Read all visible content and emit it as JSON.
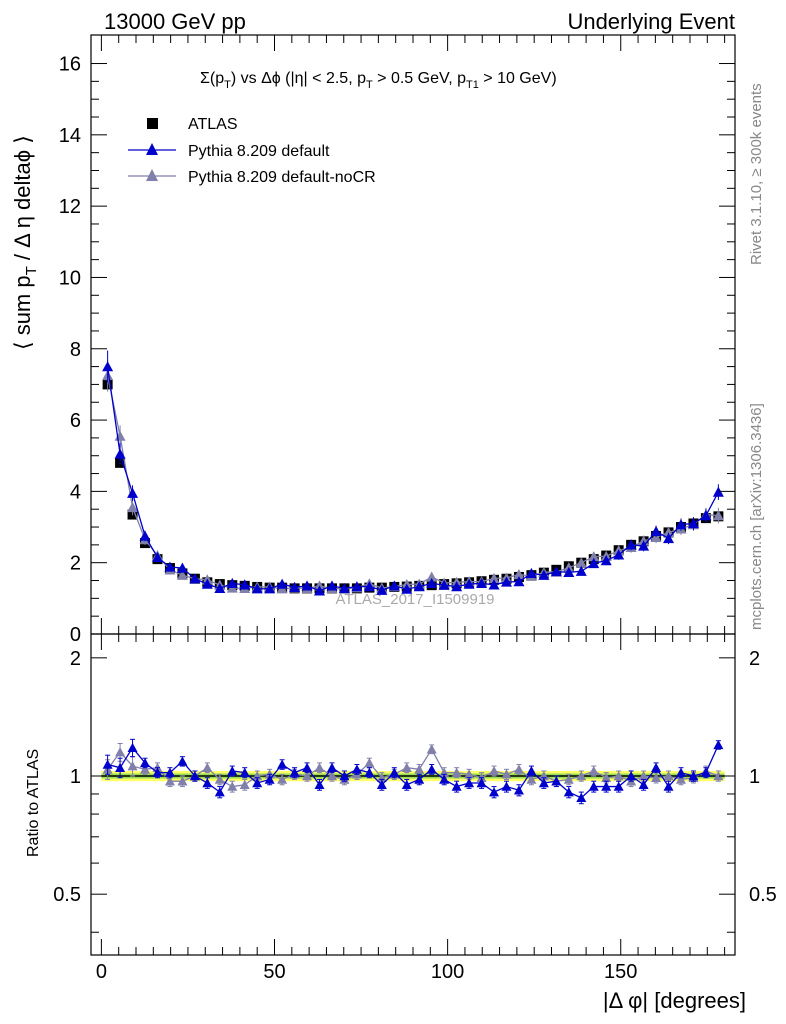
{
  "header": {
    "left": "13000 GeV pp",
    "right": "Underlying Event"
  },
  "side_labels": {
    "rivet": "Rivet 3.1.10, ≥ 300k events",
    "mcplots": "mcplots.cern.ch [arXiv:1306.3436]"
  },
  "watermark": "ATLAS_2017_I1509919",
  "colors": {
    "data": "#000000",
    "default": "#0000cc",
    "nocr": "#8080aa",
    "band_outer": "#ffff66",
    "band_inner": "#99dd55"
  },
  "chart_data": [
    {
      "type": "scatter",
      "title": "Σ(p_T) vs Δφ (|η| < 2.5, p_T > 0.5 GeV, p_T1 > 10 GeV)",
      "xlabel": "|Δ φ| [degrees]",
      "ylabel": "⟨ sum p_T / Δ η deltaφ ⟩",
      "xlim": [
        -3,
        183
      ],
      "ylim": [
        0,
        16.8
      ],
      "yticks": [
        0,
        2,
        4,
        6,
        8,
        10,
        12,
        14,
        16
      ],
      "legend_position": "top-left",
      "series": [
        {
          "name": "ATLAS",
          "x": [
            1.8,
            5.4,
            9,
            12.6,
            16.2,
            19.8,
            23.4,
            27,
            30.6,
            34.2,
            37.8,
            41.4,
            45,
            48.6,
            52.2,
            55.8,
            59.4,
            63,
            66.6,
            70.2,
            73.8,
            77.4,
            81,
            84.6,
            88.2,
            91.8,
            95.4,
            99,
            102.6,
            106.2,
            109.8,
            113.4,
            117,
            120.6,
            124.2,
            127.8,
            131.4,
            135,
            138.6,
            142.2,
            145.8,
            149.4,
            153,
            156.6,
            160.2,
            163.8,
            167.4,
            171,
            174.6,
            178.2
          ],
          "y": [
            7.0,
            4.8,
            3.35,
            2.55,
            2.1,
            1.85,
            1.7,
            1.55,
            1.45,
            1.4,
            1.37,
            1.35,
            1.32,
            1.3,
            1.3,
            1.28,
            1.28,
            1.28,
            1.28,
            1.28,
            1.28,
            1.3,
            1.3,
            1.32,
            1.33,
            1.35,
            1.37,
            1.4,
            1.42,
            1.45,
            1.48,
            1.52,
            1.55,
            1.6,
            1.65,
            1.72,
            1.8,
            1.9,
            2.0,
            2.1,
            2.2,
            2.35,
            2.5,
            2.6,
            2.75,
            2.85,
            3.0,
            3.1,
            3.25,
            3.3
          ],
          "err": [
            0.15,
            0.1,
            0.08,
            0.06,
            0.05,
            0.04,
            0.04,
            0.04,
            0.04,
            0.04,
            0.04,
            0.04,
            0.04,
            0.04,
            0.04,
            0.04,
            0.04,
            0.04,
            0.04,
            0.04,
            0.04,
            0.04,
            0.04,
            0.04,
            0.04,
            0.04,
            0.04,
            0.04,
            0.04,
            0.04,
            0.04,
            0.04,
            0.04,
            0.04,
            0.04,
            0.04,
            0.04,
            0.05,
            0.05,
            0.05,
            0.05,
            0.06,
            0.06,
            0.06,
            0.07,
            0.07,
            0.07,
            0.08,
            0.08,
            0.08
          ]
        },
        {
          "name": "Pythia 8.209 default",
          "x": [
            1.8,
            5.4,
            9,
            12.6,
            16.2,
            19.8,
            23.4,
            27,
            30.6,
            34.2,
            37.8,
            41.4,
            45,
            48.6,
            52.2,
            55.8,
            59.4,
            63,
            66.6,
            70.2,
            73.8,
            77.4,
            81,
            84.6,
            88.2,
            91.8,
            95.4,
            99,
            102.6,
            106.2,
            109.8,
            113.4,
            117,
            120.6,
            124.2,
            127.8,
            131.4,
            135,
            138.6,
            142.2,
            145.8,
            149.4,
            153,
            156.6,
            160.2,
            163.8,
            167.4,
            171,
            174.6,
            178.2
          ],
          "y": [
            7.5,
            5.05,
            3.95,
            2.75,
            2.15,
            1.88,
            1.85,
            1.55,
            1.4,
            1.28,
            1.42,
            1.38,
            1.27,
            1.27,
            1.4,
            1.31,
            1.35,
            1.21,
            1.35,
            1.28,
            1.33,
            1.33,
            1.23,
            1.35,
            1.26,
            1.33,
            1.42,
            1.37,
            1.33,
            1.4,
            1.42,
            1.38,
            1.46,
            1.47,
            1.7,
            1.65,
            1.75,
            1.73,
            1.76,
            1.98,
            2.06,
            2.22,
            2.5,
            2.47,
            2.88,
            2.68,
            3.07,
            3.1,
            3.32,
            3.98
          ],
          "err": [
            0.45,
            0.3,
            0.22,
            0.15,
            0.12,
            0.11,
            0.1,
            0.1,
            0.1,
            0.1,
            0.1,
            0.1,
            0.1,
            0.1,
            0.1,
            0.1,
            0.1,
            0.1,
            0.1,
            0.1,
            0.1,
            0.1,
            0.1,
            0.1,
            0.1,
            0.1,
            0.1,
            0.1,
            0.1,
            0.1,
            0.1,
            0.1,
            0.1,
            0.1,
            0.11,
            0.11,
            0.12,
            0.12,
            0.12,
            0.13,
            0.13,
            0.14,
            0.15,
            0.15,
            0.16,
            0.16,
            0.17,
            0.18,
            0.19,
            0.22
          ]
        },
        {
          "name": "Pythia 8.209 default-noCR",
          "x": [
            1.8,
            5.4,
            9,
            12.6,
            16.2,
            19.8,
            23.4,
            27,
            30.6,
            34.2,
            37.8,
            41.4,
            45,
            48.6,
            52.2,
            55.8,
            59.4,
            63,
            66.6,
            70.2,
            73.8,
            77.4,
            81,
            84.6,
            88.2,
            91.8,
            95.4,
            99,
            102.6,
            106.2,
            109.8,
            113.4,
            117,
            120.6,
            124.2,
            127.8,
            131.4,
            135,
            138.6,
            142.2,
            145.8,
            149.4,
            153,
            156.6,
            160.2,
            163.8,
            167.4,
            171,
            174.6,
            178.2
          ],
          "y": [
            7.25,
            5.55,
            3.55,
            2.65,
            2.2,
            1.8,
            1.65,
            1.55,
            1.52,
            1.37,
            1.29,
            1.28,
            1.32,
            1.32,
            1.27,
            1.29,
            1.28,
            1.35,
            1.28,
            1.26,
            1.3,
            1.41,
            1.29,
            1.33,
            1.39,
            1.4,
            1.6,
            1.43,
            1.45,
            1.47,
            1.47,
            1.56,
            1.57,
            1.67,
            1.62,
            1.73,
            1.74,
            1.86,
            2.0,
            2.17,
            2.18,
            2.34,
            2.43,
            2.61,
            2.71,
            2.85,
            2.95,
            3.07,
            3.35,
            3.32
          ],
          "err": [
            0.45,
            0.3,
            0.22,
            0.15,
            0.12,
            0.11,
            0.1,
            0.1,
            0.1,
            0.1,
            0.1,
            0.1,
            0.1,
            0.1,
            0.1,
            0.1,
            0.1,
            0.1,
            0.1,
            0.1,
            0.1,
            0.1,
            0.1,
            0.1,
            0.1,
            0.1,
            0.1,
            0.1,
            0.1,
            0.1,
            0.1,
            0.1,
            0.1,
            0.1,
            0.11,
            0.11,
            0.12,
            0.12,
            0.12,
            0.13,
            0.13,
            0.14,
            0.15,
            0.15,
            0.16,
            0.16,
            0.17,
            0.18,
            0.19,
            0.22
          ]
        }
      ]
    },
    {
      "type": "scatter",
      "xlabel": "|Δ φ| [degrees]",
      "ylabel": "Ratio to ATLAS",
      "xlim": [
        -3,
        183
      ],
      "ylim": [
        0.35,
        2.3
      ],
      "yticks": [
        0.5,
        1,
        2
      ],
      "xticks": [
        0,
        50,
        100,
        150
      ],
      "series": [
        {
          "name": "Pythia 8.209 default",
          "x": [
            1.8,
            5.4,
            9,
            12.6,
            16.2,
            19.8,
            23.4,
            27,
            30.6,
            34.2,
            37.8,
            41.4,
            45,
            48.6,
            52.2,
            55.8,
            59.4,
            63,
            66.6,
            70.2,
            73.8,
            77.4,
            81,
            84.6,
            88.2,
            91.8,
            95.4,
            99,
            102.6,
            106.2,
            109.8,
            113.4,
            117,
            120.6,
            124.2,
            127.8,
            131.4,
            135,
            138.6,
            142.2,
            145.8,
            149.4,
            153,
            156.6,
            160.2,
            163.8,
            167.4,
            171,
            174.6,
            178.2
          ],
          "y": [
            1.07,
            1.05,
            1.18,
            1.08,
            1.02,
            1.02,
            1.09,
            1.0,
            0.96,
            0.91,
            1.03,
            1.02,
            0.96,
            0.98,
            1.07,
            1.02,
            1.05,
            0.95,
            1.05,
            1.0,
            1.04,
            1.02,
            0.95,
            1.02,
            0.95,
            0.98,
            1.04,
            0.98,
            0.94,
            0.96,
            0.96,
            0.91,
            0.94,
            0.92,
            1.03,
            0.96,
            0.97,
            0.91,
            0.88,
            0.94,
            0.94,
            0.94,
            1.0,
            0.95,
            1.05,
            0.94,
            1.02,
            1.0,
            1.02,
            1.2
          ]
        },
        {
          "name": "Pythia 8.209 default-noCR",
          "x": [
            1.8,
            5.4,
            9,
            12.6,
            16.2,
            19.8,
            23.4,
            27,
            30.6,
            34.2,
            37.8,
            41.4,
            45,
            48.6,
            52.2,
            55.8,
            59.4,
            63,
            66.6,
            70.2,
            73.8,
            77.4,
            81,
            84.6,
            88.2,
            91.8,
            95.4,
            99,
            102.6,
            106.2,
            109.8,
            113.4,
            117,
            120.6,
            124.2,
            127.8,
            131.4,
            135,
            138.6,
            142.2,
            145.8,
            149.4,
            153,
            156.6,
            160.2,
            163.8,
            167.4,
            171,
            174.6,
            178.2
          ],
          "y": [
            1.04,
            1.15,
            1.06,
            1.04,
            1.05,
            0.97,
            0.97,
            1.0,
            1.05,
            0.98,
            0.94,
            0.95,
            1.0,
            1.01,
            0.98,
            1.01,
            1.0,
            1.05,
            1.0,
            0.98,
            1.01,
            1.08,
            0.99,
            1.01,
            1.05,
            1.04,
            1.17,
            1.02,
            1.02,
            1.01,
            0.99,
            1.03,
            1.01,
            1.04,
            0.98,
            1.0,
            0.97,
            0.98,
            1.0,
            1.03,
            0.99,
            1.0,
            0.97,
            1.0,
            0.99,
            1.0,
            0.98,
            0.99,
            1.03,
            1.0
          ]
        }
      ]
    }
  ]
}
